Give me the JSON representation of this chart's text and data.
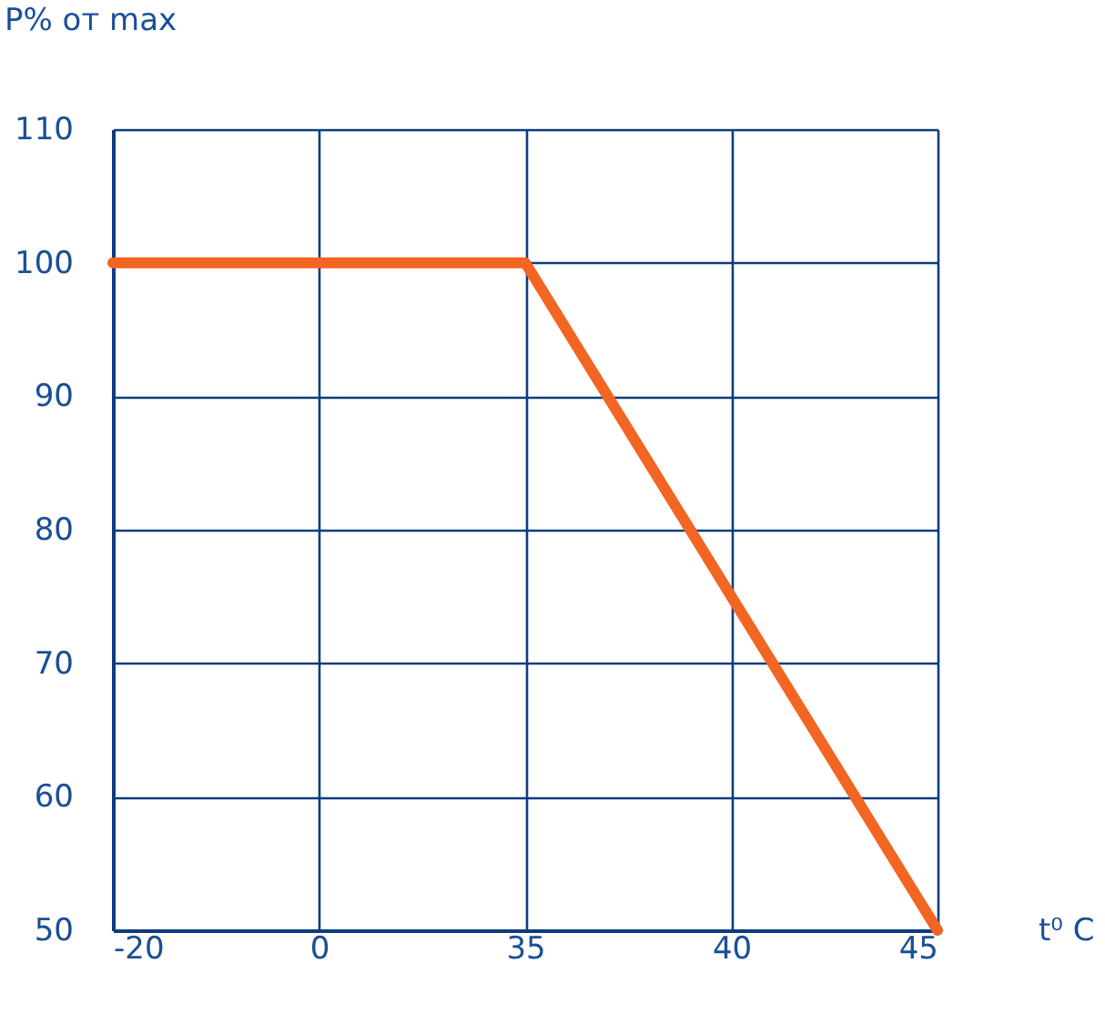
{
  "chart_data": {
    "type": "line",
    "xlabel": "t⁰ C",
    "ylabel": "P% от max",
    "categories": [
      "-20",
      "0",
      "35",
      "40",
      "45"
    ],
    "series": [
      {
        "color": "#f26522",
        "values": [
          100,
          100,
          100,
          75,
          50
        ]
      }
    ],
    "ylim": [
      50,
      110
    ],
    "yticks": [
      50,
      60,
      70,
      80,
      90,
      100,
      110
    ],
    "grid": true,
    "marker": "none",
    "line_style": "solid"
  }
}
